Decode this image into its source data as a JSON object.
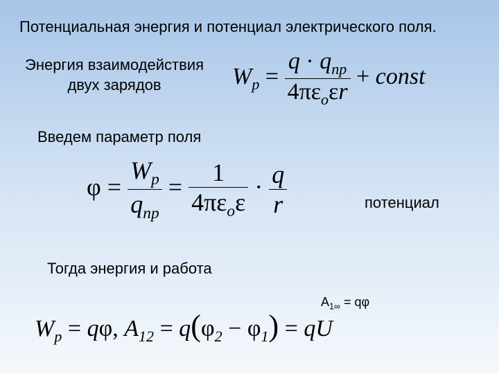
{
  "title": "Потенциальная энергия и потенциал электрического поля.",
  "section1": {
    "label_line1": "Энергия взаимодействия",
    "label_line2": "двух зарядов"
  },
  "section2": {
    "label": "Введем параметр поля",
    "potential_label": "потенциал"
  },
  "section3": {
    "label": "Тогда энергия и работа",
    "a_inf": "А",
    "a_inf_sub": "1∞",
    "a_inf_eq": " = qφ"
  },
  "symbols": {
    "W": "W",
    "p": "p",
    "q": "q",
    "np": "np",
    "eq": " = ",
    "dot": "·",
    "four": "4",
    "pi": "π",
    "eps": "ε",
    "o": "o",
    "r": "r",
    "plus": " + ",
    "const": "const",
    "phi": "φ",
    "one": "1",
    "comma": ", ",
    "A": "A",
    "twelve": "12",
    "lparen": "(",
    "rparen": ")",
    "phi2": "φ",
    "two": "2",
    "minus": " − ",
    "phi1": "φ",
    "sub1": "1",
    "U": "U"
  },
  "style": {
    "title_fontsize": 22,
    "label_fontsize": 22,
    "formula_fontsize_main": 34,
    "formula_fontsize_big": 36,
    "text_color": "#000000",
    "bg_gradient_top": "#a7c5e8",
    "bg_gradient_mid": "#d4e3f4",
    "bg_gradient_bot": "#f5f9fc"
  }
}
